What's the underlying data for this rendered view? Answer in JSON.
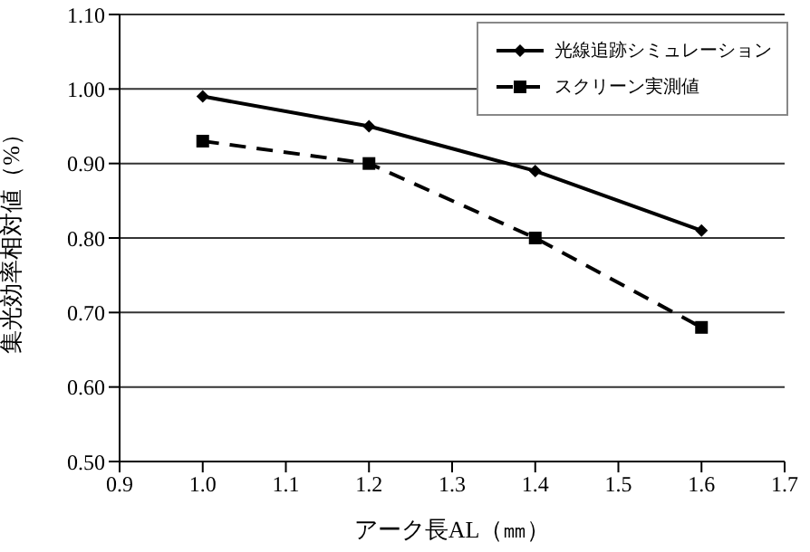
{
  "chart_data": {
    "type": "line",
    "xlabel": "アーク長AL（㎜）",
    "ylabel": "集光効率相対値（%）",
    "x": [
      1.0,
      1.2,
      1.4,
      1.6
    ],
    "series": [
      {
        "name": "光線追跡シミュレーション",
        "color": "#000000",
        "values": [
          0.99,
          0.95,
          0.89,
          0.81
        ],
        "marker": "diamond",
        "line_style": "solid"
      },
      {
        "name": "スクリーン実測値",
        "color": "#000000",
        "values": [
          0.93,
          0.9,
          0.8,
          0.68
        ],
        "marker": "square",
        "line_style": "dashed"
      }
    ],
    "xlim": [
      0.9,
      1.7
    ],
    "xticks": [
      0.9,
      {
        "value": 1.0,
        "label": "1.0"
      },
      1.1,
      1.2,
      1.3,
      1.4,
      1.5,
      1.6,
      1.7
    ],
    "ylim": [
      0.5,
      1.1
    ],
    "yticks": [
      {
        "value": 0.5,
        "label": "0.50"
      },
      {
        "value": 0.6,
        "label": "0.60"
      },
      {
        "value": 0.7,
        "label": "0.70"
      },
      {
        "value": 0.8,
        "label": "0.80"
      },
      {
        "value": 0.9,
        "label": "0.90"
      },
      {
        "value": 1.0,
        "label": "1.00"
      },
      {
        "value": 1.1,
        "label": "1.10"
      }
    ],
    "grid": "y",
    "legend": "top right"
  }
}
